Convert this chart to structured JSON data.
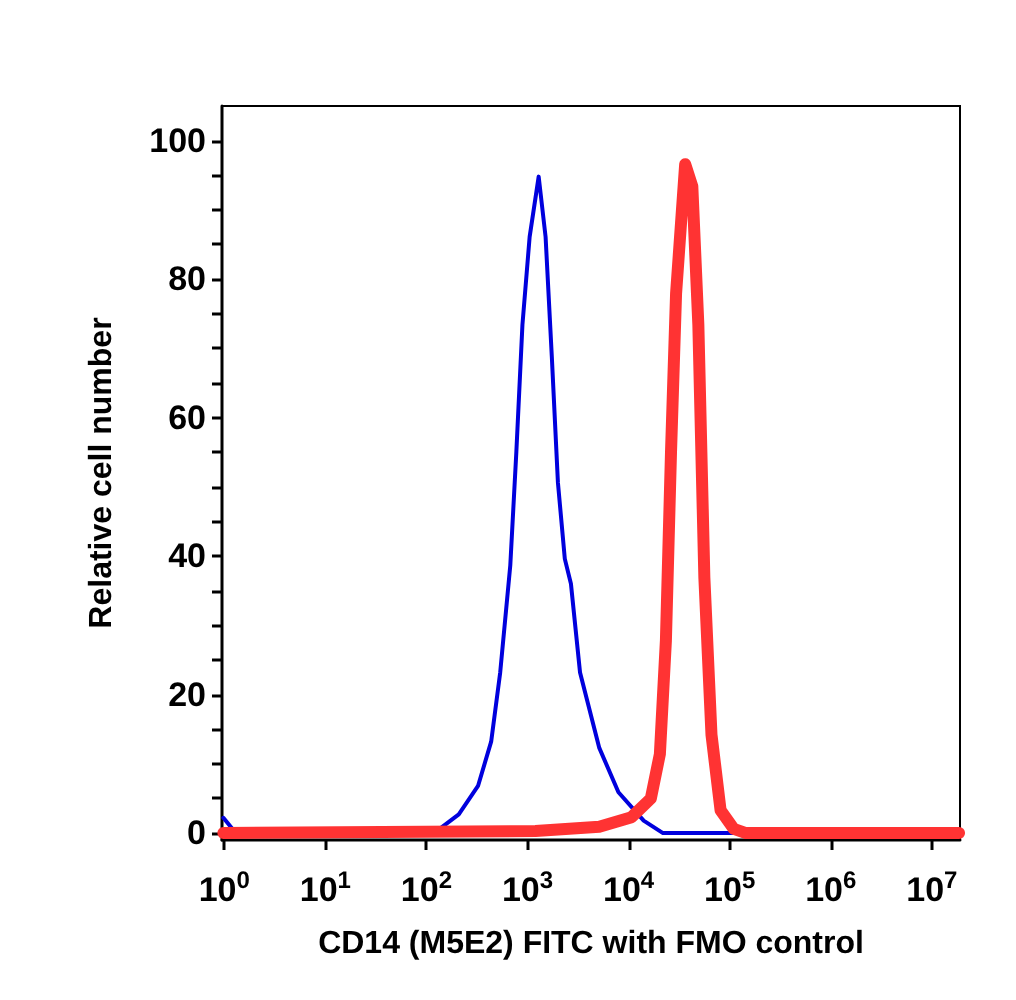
{
  "chart_data": {
    "type": "line",
    "xlabel": "CD14 (M5E2) FITC with FMO control",
    "ylabel": "Relative cell number",
    "log": "x",
    "xlim": [
      0.95,
      19000000
    ],
    "ylim": [
      -1,
      105
    ],
    "xticks": [
      {
        "value": 1,
        "label": "10$^{0}$"
      },
      {
        "value": 10,
        "label": "10$^{1}$"
      },
      {
        "value": 100,
        "label": "10$^{2}$"
      },
      {
        "value": 1000,
        "label": "10$^{3}$"
      },
      {
        "value": 10000,
        "label": "10$^{4}$"
      },
      {
        "value": 100000,
        "label": "10$^{5}$"
      },
      {
        "value": 1000000,
        "label": "10$^{6}$"
      },
      {
        "value": 10000000,
        "label": "10$^{7}$"
      }
    ],
    "yticks": [
      0,
      {
        "value": 5,
        "label": null
      },
      {
        "value": 10,
        "label": null
      },
      {
        "value": 15,
        "label": null
      },
      20,
      {
        "value": 25,
        "label": null
      },
      {
        "value": 30,
        "label": null
      },
      {
        "value": 35,
        "label": null
      },
      40,
      {
        "value": 45,
        "label": null
      },
      {
        "value": 50,
        "label": null
      },
      {
        "value": 55,
        "label": null
      },
      60,
      {
        "value": 65,
        "label": null
      },
      {
        "value": 70,
        "label": null
      },
      {
        "value": 75,
        "label": null
      },
      80,
      {
        "value": 85,
        "label": null
      },
      {
        "value": 90,
        "label": null
      },
      {
        "value": 95,
        "label": null
      },
      100
    ],
    "grid": false,
    "marker": "none",
    "line_style": "solid",
    "series": [
      {
        "color": "#0000dd",
        "x": [
          0.98,
          1.3,
          66,
          135,
          209,
          324,
          437,
          537,
          676,
          776,
          891,
          1050,
          1290,
          1510,
          1740,
          2000,
          2340,
          2690,
          3310,
          5130,
          7940,
          14100,
          21900,
          18600000
        ],
        "values": [
          2.2,
          0,
          0,
          0.6,
          2.7,
          6.8,
          13.2,
          23.2,
          38.7,
          55.1,
          73.4,
          86.1,
          94.8,
          86.1,
          68.8,
          50.6,
          39.6,
          36,
          23.2,
          12.3,
          5.9,
          1.8,
          0,
          0
        ]
      },
      {
        "color": "#ff3333",
        "x": [
          0.98,
          1200,
          5130,
          10700,
          16600,
          20400,
          23400,
          26300,
          29500,
          36300,
          42700,
          49000,
          56200,
          66100,
          81300,
          110000,
          145000,
          18600000
        ],
        "values": [
          0,
          0.3,
          0.9,
          2.3,
          5,
          11.4,
          27.8,
          55.1,
          77.9,
          96.6,
          93.4,
          73.4,
          36.9,
          14.2,
          3.3,
          0.6,
          0,
          0
        ]
      }
    ]
  }
}
